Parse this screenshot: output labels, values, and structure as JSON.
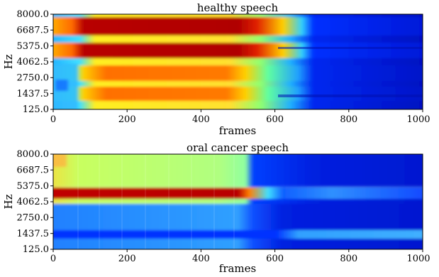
{
  "chart_data": [
    {
      "type": "heatmap",
      "title": "healthy speech",
      "xlabel": "frames",
      "ylabel": "Hz",
      "xlim": [
        0,
        1000
      ],
      "ylim": [
        125.0,
        8000.0
      ],
      "x_ticks": [
        "0",
        "200",
        "400",
        "600",
        "800",
        "1000"
      ],
      "y_ticks": [
        "125.0",
        "1437.5",
        "2750.0",
        "4062.5",
        "5375.0",
        "6687.5",
        "8000.0"
      ],
      "colormap": "jet",
      "active_until_frame": 560,
      "silence_from_frame": 610
    },
    {
      "type": "heatmap",
      "title": "oral cancer speech",
      "xlabel": "frames",
      "ylabel": "Hz",
      "xlim": [
        0,
        1000
      ],
      "ylim": [
        125.0,
        8000.0
      ],
      "x_ticks": [
        "0",
        "200",
        "400",
        "600",
        "800",
        "1000"
      ],
      "y_ticks": [
        "125.0",
        "1437.5",
        "2750.0",
        "4062.5",
        "5375.0",
        "6687.5",
        "8000.0"
      ],
      "colormap": "jet",
      "active_until_frame": 530,
      "silence_from_frame": 620
    }
  ]
}
